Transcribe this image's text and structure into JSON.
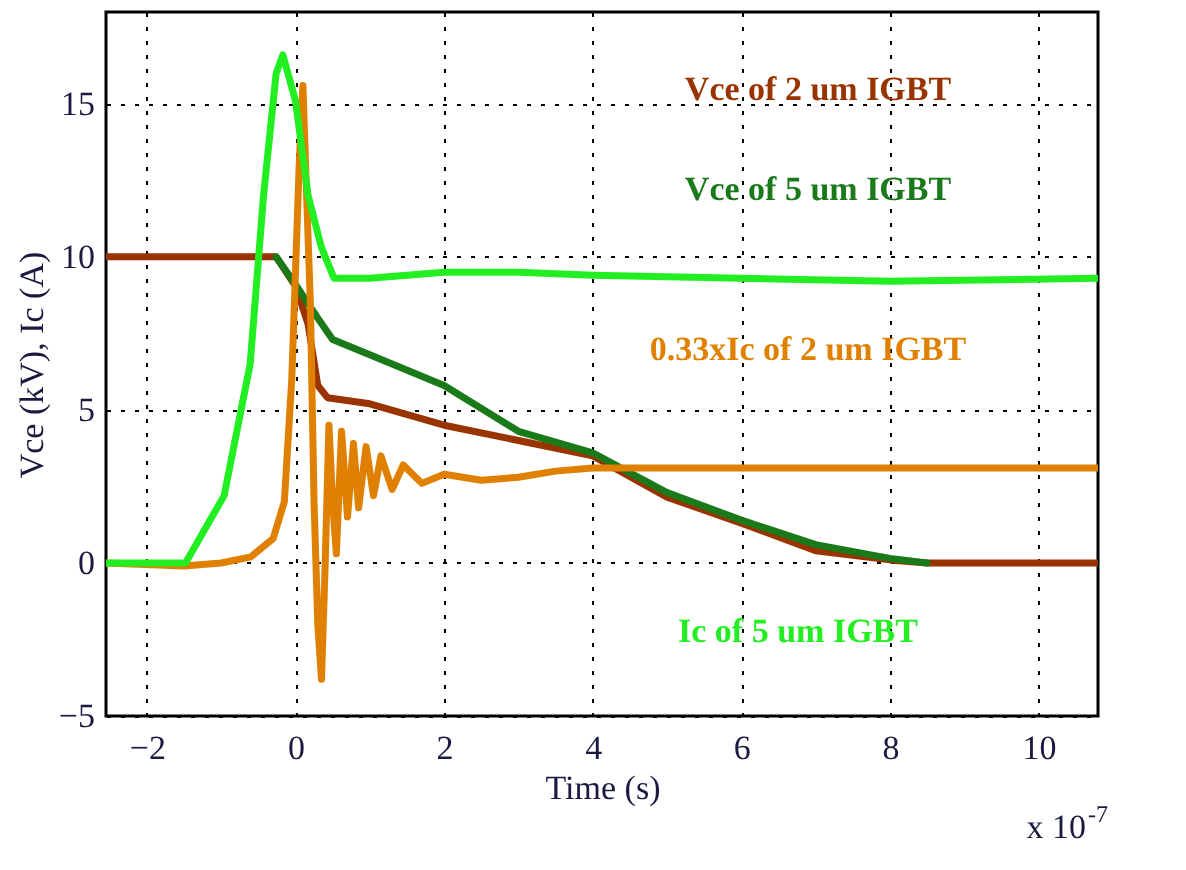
{
  "chart_data": {
    "type": "line",
    "xlabel": "Time (s)",
    "ylabel": "Vce (kV), Ic (A)",
    "xlim": [
      -2.55,
      10.8
    ],
    "ylim": [
      -5,
      18
    ],
    "xticks": [
      -2,
      0,
      2,
      4,
      6,
      8,
      10
    ],
    "yticks": [
      -5,
      0,
      5,
      10,
      15
    ],
    "grid": true,
    "annotations": [
      "x 10$^{-7}$"
    ],
    "series": [
      {
        "name": "Vce of 2 um IGBT",
        "color": "#993300",
        "x": [
          -2.55,
          -1,
          -0.26,
          0,
          0.17,
          0.3,
          0.43,
          1,
          2,
          3,
          4,
          5,
          6,
          7,
          8,
          8.5,
          10.8
        ],
        "values": [
          10,
          10,
          10,
          9.05,
          7.8,
          5.8,
          5.4,
          5.2,
          4.5,
          4,
          3.5,
          2.15,
          1.3,
          0.4,
          0.1,
          0,
          0
        ]
      },
      {
        "name": "Vce of 5 um IGBT",
        "color": "#1a7a1a",
        "x": [
          -0.26,
          0,
          0.3,
          0.5,
          1,
          2,
          3,
          4,
          5,
          6,
          7,
          8,
          8.5
        ],
        "values": [
          10,
          9.1,
          8,
          7.3,
          6.8,
          5.8,
          4.3,
          3.6,
          2.3,
          1.4,
          0.6,
          0.15,
          0
        ]
      },
      {
        "name": "0.33xIc of 2 um IGBT",
        "color": "#e08000",
        "x": [
          -2.55,
          -1.5,
          -1,
          -0.6,
          -0.3,
          -0.15,
          -0.05,
          0.05,
          0.1,
          0.15,
          0.2,
          0.25,
          0.3,
          0.35,
          0.4,
          0.45,
          0.5,
          0.55,
          0.62,
          0.7,
          0.78,
          0.85,
          0.95,
          1.05,
          1.15,
          1.3,
          1.45,
          1.7,
          2,
          2.5,
          3,
          3.5,
          4,
          5,
          7,
          9,
          10.8
        ],
        "values": [
          0,
          -0.1,
          0,
          0.2,
          0.8,
          2,
          6,
          13,
          15.6,
          12,
          8.5,
          2,
          -2,
          -3.8,
          0,
          4.5,
          2,
          0.3,
          4.3,
          1.5,
          3.9,
          1.8,
          3.8,
          2.2,
          3.5,
          2.4,
          3.2,
          2.6,
          2.9,
          2.7,
          2.8,
          3,
          3.1,
          3.1,
          3.1,
          3.1,
          3.1
        ]
      },
      {
        "name": "Ic of 5 um IGBT",
        "color": "#22ee22",
        "x": [
          -2.55,
          -1.48,
          -0.96,
          -0.61,
          -0.43,
          -0.26,
          -0.17,
          0,
          0.17,
          0.35,
          0.52,
          1,
          2,
          3,
          4,
          6,
          8,
          10.8
        ],
        "values": [
          0,
          0,
          2.2,
          6.5,
          12,
          16,
          16.6,
          15.1,
          12,
          10.3,
          9.3,
          9.3,
          9.5,
          9.5,
          9.4,
          9.3,
          9.2,
          9.3
        ]
      }
    ]
  }
}
